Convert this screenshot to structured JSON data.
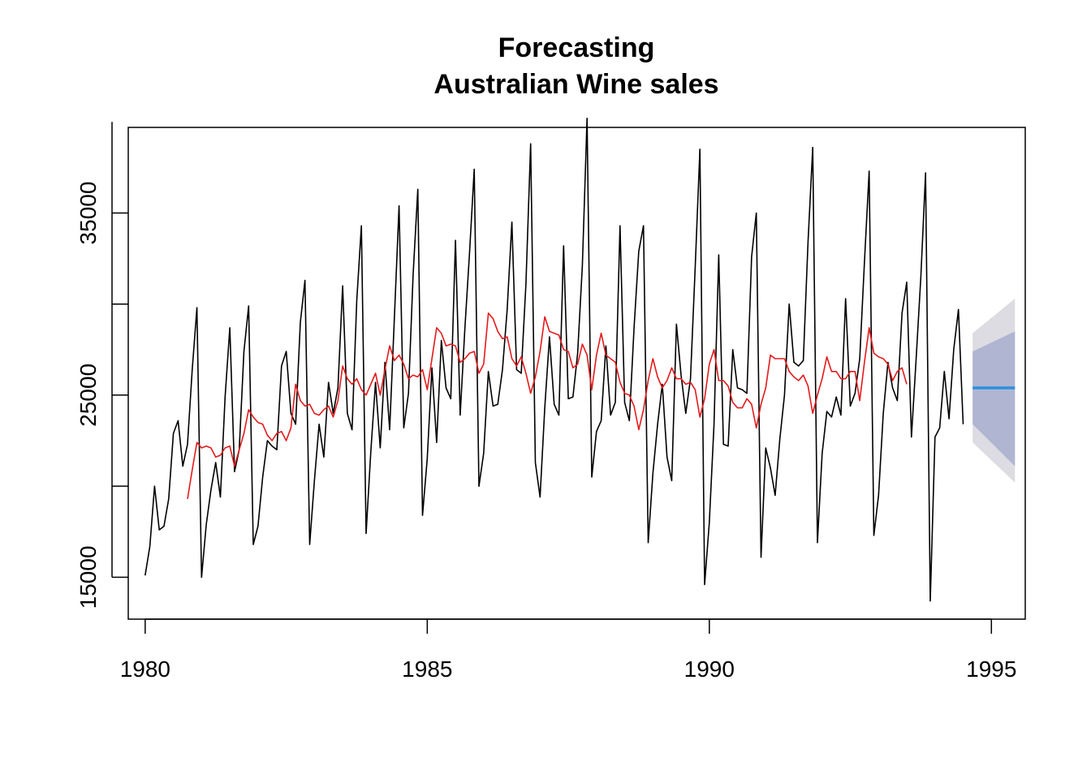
{
  "chart_data": {
    "type": "line",
    "title": "Forecasting",
    "subtitle": "Australian Wine sales",
    "xlabel": "",
    "ylabel": "",
    "xlim": [
      1979.7,
      1995.6
    ],
    "ylim": [
      12700,
      39700
    ],
    "x_ticks": [
      1980,
      1985,
      1990,
      1995
    ],
    "y_ticks": [
      15000,
      25000,
      35000
    ],
    "grid": false,
    "legend": "none",
    "colors": {
      "observed": "#000000",
      "fitted": "#e41a1c",
      "forecast": "#2a91dc",
      "band80": "#b0b5d2",
      "band95": "#dcdce2"
    },
    "series": [
      {
        "key": "observed",
        "start": 1980.0,
        "step": 0.08333,
        "values": [
          15100,
          16700,
          20000,
          17600,
          17800,
          19300,
          22900,
          23600,
          21100,
          22300,
          26400,
          29800,
          15000,
          17900,
          19800,
          21300,
          19400,
          24900,
          28700,
          20800,
          22000,
          27400,
          29900,
          16800,
          17800,
          20500,
          22500,
          22200,
          22000,
          26600,
          27400,
          24000,
          23400,
          29000,
          31300,
          16800,
          20300,
          23400,
          21600,
          25700,
          24000,
          25400,
          31000,
          24000,
          23100,
          30200,
          34300,
          17400,
          21900,
          25700,
          22100,
          26800,
          23100,
          29200,
          35400,
          23200,
          25100,
          31600,
          36300,
          18400,
          21500,
          26500,
          22400,
          28000,
          25400,
          24800,
          33500,
          23900,
          28600,
          32800,
          37400,
          20000,
          21800,
          26300,
          24400,
          24500,
          26400,
          29700,
          34500,
          26400,
          26200,
          31100,
          38800,
          21300,
          19400,
          24300,
          28200,
          24500,
          23900,
          33200,
          24800,
          24900,
          27300,
          32100,
          40200,
          20500,
          23000,
          23600,
          27700,
          23900,
          24600,
          34300,
          24600,
          23600,
          28700,
          32900,
          34300,
          16900,
          20700,
          23400,
          25600,
          21600,
          20300,
          28900,
          26100,
          24000,
          25900,
          32000,
          38500,
          14600,
          18000,
          23400,
          32700,
          22300,
          22200,
          27500,
          25400,
          25300,
          25100,
          32600,
          35000,
          16100,
          22100,
          21000,
          19500,
          22600,
          25000,
          30000,
          26800,
          26600,
          26900,
          33400,
          38600,
          16900,
          21800,
          24100,
          23800,
          24900,
          23900,
          30300,
          24400,
          25100,
          27000,
          32300,
          37300,
          17300,
          19500,
          24000,
          26800,
          25400,
          24700,
          29500,
          31200,
          22700,
          27000,
          31500,
          37200,
          13700,
          22700,
          23200,
          26300,
          23700,
          27500,
          29700,
          23400
        ]
      },
      {
        "key": "fitted",
        "start": 1980.75,
        "step": 0.08333,
        "values": [
          19300,
          20900,
          22400,
          22100,
          22200,
          22100,
          21600,
          21700,
          22100,
          22200,
          21100,
          22000,
          22900,
          24200,
          23800,
          23500,
          23400,
          22800,
          22500,
          22900,
          23000,
          22500,
          23200,
          25600,
          24700,
          24400,
          24500,
          24000,
          23900,
          24200,
          24400,
          23800,
          24700,
          26600,
          25900,
          25600,
          25900,
          25300,
          25000,
          25600,
          26200,
          25000,
          26400,
          27700,
          26900,
          27200,
          26700,
          25900,
          26100,
          26000,
          26400,
          25300,
          27000,
          28700,
          28400,
          27700,
          27800,
          27700,
          26800,
          27000,
          27300,
          27400,
          26200,
          26700,
          29500,
          29200,
          28500,
          28100,
          28200,
          27000,
          26600,
          27100,
          26200,
          25100,
          26000,
          27400,
          29300,
          28500,
          28400,
          28300,
          27500,
          27400,
          26500,
          26700,
          27800,
          27200,
          25300,
          27200,
          28400,
          27200,
          27000,
          26800,
          25700,
          25100,
          25000,
          24400,
          23100,
          24200,
          25800,
          27000,
          26000,
          25400,
          25800,
          26500,
          25900,
          25900,
          25600,
          25700,
          25300,
          23800,
          24800,
          26700,
          27500,
          25800,
          25800,
          25500,
          24600,
          24300,
          24300,
          24800,
          24500,
          23200,
          24500,
          25400,
          27200,
          27000,
          27000,
          27000,
          26300,
          26000,
          25800,
          26100,
          25500,
          24000,
          25000,
          25900,
          27100,
          26300,
          26300,
          25900,
          25900,
          26300,
          26300,
          24700,
          26800,
          28700,
          27300,
          27100,
          27000,
          26700,
          25800,
          26300,
          26500,
          25600
        ]
      },
      {
        "key": "forecast",
        "x": [
          1994.667,
          1995.417
        ],
        "values": [
          25400,
          25400
        ]
      }
    ],
    "forecast_interval": {
      "x": [
        1994.667,
        1995.417
      ],
      "lo80": [
        23400,
        21100
      ],
      "hi80": [
        27400,
        28500
      ],
      "lo95": [
        22400,
        20200
      ],
      "hi95": [
        28400,
        30300
      ]
    }
  }
}
